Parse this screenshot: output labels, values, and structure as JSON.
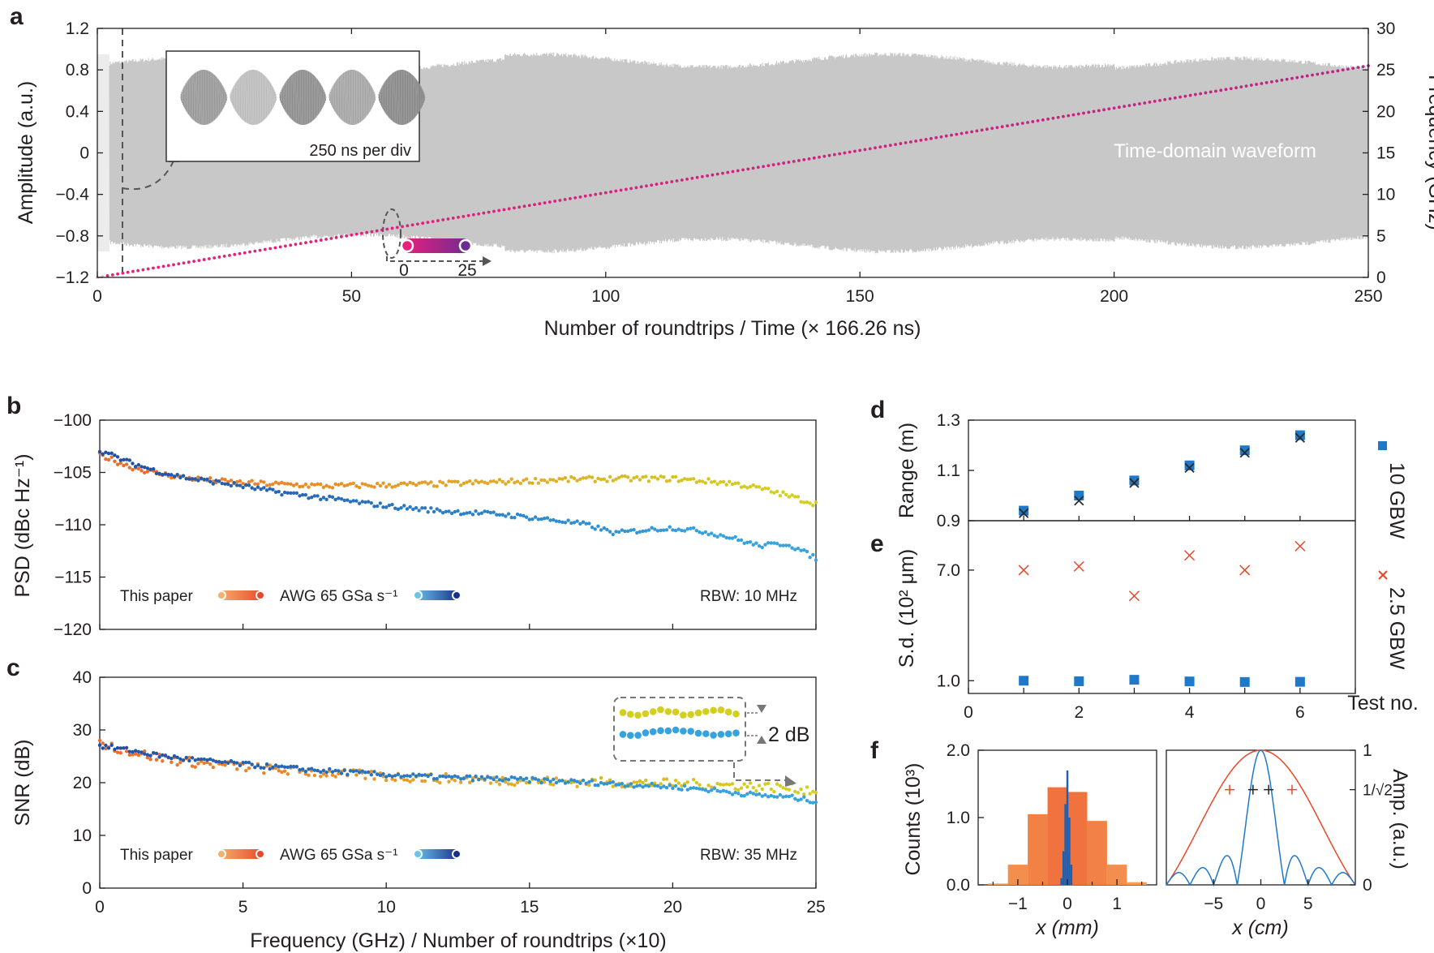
{
  "panels": {
    "a": {
      "label": "a",
      "xlabel": "Number of roundtrips / Time (× 166.26 ns)",
      "ylabel_left": "Amplitude (a.u.)",
      "ylabel_right": "Frequency (GHz)",
      "waveform_label": "Time-domain waveform",
      "inset_caption": "250 ns per div",
      "colorbar_min": "0",
      "colorbar_max": "25"
    },
    "b": {
      "label": "b",
      "ylabel": "PSD (dBc Hz⁻¹)",
      "rbw": "RBW: 10 MHz",
      "legend_1": "This paper",
      "legend_2": "AWG 65 GSa s⁻¹"
    },
    "c": {
      "label": "c",
      "ylabel": "SNR (dB)",
      "xlabel": "Frequency (GHz) / Number of roundtrips (×10)",
      "rbw": "RBW: 35 MHz",
      "legend_1": "This paper",
      "legend_2": "AWG 65 GSa s⁻¹",
      "inset_note": "2 dB"
    },
    "d": {
      "label": "d",
      "ylabel": "Range (m)",
      "legend_1": "10 GBW",
      "legend_2": "2.5 GBW"
    },
    "e": {
      "label": "e",
      "ylabel": "S.d. (10² μm)",
      "xlabel": "Test no."
    },
    "f": {
      "label": "f",
      "ylabel_left": "Counts (10³)",
      "xlabel_left": "x (mm)",
      "xlabel_right": "x (cm)",
      "ylabel_right": "Amp. (a.u.)"
    }
  },
  "colors": {
    "this_paper": "#ef6b2a",
    "this_paper_light": "#e3a228",
    "this_paper_end": "#d4cf1e",
    "awg": "#1f4fa5",
    "awg_light": "#36a3df",
    "frequency_ramp_start": "#e8207d",
    "frequency_ramp_end": "#6d2c91",
    "waveform": "#c8c8c8",
    "cross_red": "#e8472b",
    "square_blue": "#1f78c8",
    "hist_orange": "#f28a5a",
    "hist_blue": "#1f5fb0"
  },
  "chart_data": [
    {
      "panel": "a",
      "type": "line",
      "xlabel": "Number of roundtrips / Time (× 166.26 ns)",
      "xlim": [
        0,
        250
      ],
      "xticks": [
        0,
        50,
        100,
        150,
        200,
        250
      ],
      "ylim": [
        -1.2,
        1.2
      ],
      "yticks": [
        -1.2,
        -0.8,
        -0.4,
        0,
        0.4,
        0.8,
        1.2
      ],
      "y2lim": [
        0,
        30
      ],
      "y2ticks": [
        0,
        5,
        10,
        15,
        20,
        25,
        30
      ],
      "series": [
        {
          "kind": "envelope",
          "amplitude": 0.85
        },
        {
          "kind": "frequency-ramp",
          "x": [
            0,
            250
          ],
          "y": [
            0,
            25.5
          ]
        }
      ]
    },
    {
      "panel": "b",
      "type": "scatter",
      "ylabel": "PSD (dBc Hz⁻¹)",
      "xlim": [
        0,
        25
      ],
      "ylim": [
        -120,
        -100
      ],
      "yticks": [
        -120,
        -115,
        -110,
        -105,
        -100
      ],
      "series": [
        {
          "name": "This paper",
          "x": [
            0,
            1,
            2,
            3,
            4,
            5,
            6,
            8,
            10,
            12,
            14,
            16,
            18,
            20,
            22,
            23,
            24,
            25
          ],
          "y": [
            -103.3,
            -104.4,
            -105.1,
            -105.5,
            -105.8,
            -106.0,
            -106.1,
            -106.3,
            -106.2,
            -106.1,
            -105.9,
            -105.7,
            -105.6,
            -105.6,
            -106.0,
            -106.5,
            -107.2,
            -108.0
          ]
        },
        {
          "name": "AWG 65 GSa s⁻¹",
          "x": [
            0,
            1,
            2,
            3,
            4,
            5,
            6,
            8,
            10,
            12,
            14,
            15,
            16,
            17,
            18,
            19,
            20,
            21,
            22,
            23,
            24,
            25
          ],
          "y": [
            -102.9,
            -104.0,
            -104.9,
            -105.5,
            -105.9,
            -106.3,
            -106.8,
            -107.5,
            -108.2,
            -108.7,
            -109.0,
            -109.3,
            -109.6,
            -110.0,
            -110.8,
            -110.5,
            -110.3,
            -110.6,
            -111.2,
            -112.0,
            -111.8,
            -113.2
          ]
        }
      ]
    },
    {
      "panel": "c",
      "type": "scatter",
      "xlabel": "Frequency (GHz) / Number of roundtrips (×10)",
      "ylabel": "SNR (dB)",
      "xlim": [
        0,
        25
      ],
      "ylim": [
        0,
        40
      ],
      "xticks": [
        0,
        5,
        10,
        15,
        20,
        25
      ],
      "yticks": [
        0,
        10,
        20,
        30,
        40
      ],
      "series": [
        {
          "name": "This paper",
          "x": [
            0,
            1,
            2,
            3,
            4,
            5,
            6,
            8,
            10,
            12,
            14,
            16,
            18,
            20,
            22,
            24,
            25
          ],
          "y": [
            27.5,
            26.0,
            24.8,
            24.0,
            23.5,
            23.0,
            22.5,
            21.8,
            21.2,
            20.8,
            20.5,
            20.2,
            20.0,
            19.8,
            19.5,
            19.0,
            18.5
          ]
        },
        {
          "name": "AWG 65 GSa s⁻¹",
          "x": [
            0,
            1,
            2,
            3,
            4,
            5,
            6,
            8,
            10,
            12,
            14,
            16,
            18,
            20,
            21,
            22,
            23,
            24,
            25
          ],
          "y": [
            27.0,
            26.2,
            25.2,
            24.5,
            24.0,
            23.5,
            23.0,
            22.2,
            21.5,
            21.0,
            20.7,
            20.3,
            19.8,
            19.2,
            18.8,
            18.2,
            17.6,
            17.3,
            16.5
          ]
        }
      ]
    },
    {
      "panel": "d",
      "type": "scatter",
      "ylabel": "Range (m)",
      "xlim": [
        0,
        7
      ],
      "ylim": [
        0.9,
        1.3
      ],
      "yticks": [
        0.9,
        1.1,
        1.3
      ],
      "series": [
        {
          "name": "10 GBW",
          "x": [
            1,
            2,
            3,
            4,
            5,
            6
          ],
          "y": [
            0.94,
            1.0,
            1.06,
            1.12,
            1.18,
            1.24
          ]
        },
        {
          "name": "2.5 GBW",
          "x": [
            1,
            2,
            3,
            4,
            5,
            6
          ],
          "y": [
            0.93,
            0.98,
            1.05,
            1.11,
            1.17,
            1.23
          ]
        }
      ]
    },
    {
      "panel": "e",
      "type": "scatter",
      "xlabel": "Test no.",
      "ylabel": "S.d. (10² μm)",
      "xlim": [
        0,
        7
      ],
      "xticks": [
        0,
        2,
        4,
        6
      ],
      "yticks": [
        1.0,
        7.0
      ],
      "series": [
        {
          "name": "10 GBW",
          "x": [
            1,
            2,
            3,
            4,
            5,
            6
          ],
          "y": [
            1.0,
            0.97,
            1.05,
            0.96,
            0.93,
            0.94
          ]
        },
        {
          "name": "2.5 GBW",
          "x": [
            1,
            2,
            3,
            4,
            5,
            6
          ],
          "y": [
            7.0,
            7.2,
            5.6,
            7.8,
            7.0,
            8.3
          ]
        }
      ]
    },
    {
      "panel": "f-left",
      "type": "bar",
      "xlabel": "x (mm)",
      "ylabel": "Counts (10³)",
      "xlim": [
        -1.8,
        1.8
      ],
      "ylim": [
        0,
        2.0
      ],
      "xticks": [
        -1,
        0,
        1
      ],
      "yticks": [
        0,
        1.0,
        2.0
      ],
      "series": [
        {
          "name": "2.5 GBW",
          "bin_width": 0.4,
          "x": [
            -1.4,
            -1.0,
            -0.6,
            -0.2,
            0.2,
            0.6,
            1.0,
            1.4
          ],
          "values": [
            0.02,
            0.3,
            1.05,
            1.45,
            1.38,
            0.95,
            0.3,
            0.04
          ]
        },
        {
          "name": "10 GBW",
          "bin_width": 0.04,
          "x": [
            -0.12,
            -0.08,
            -0.04,
            0,
            0.04,
            0.08
          ],
          "values": [
            0.1,
            0.5,
            1.2,
            1.7,
            1.0,
            0.3
          ]
        }
      ]
    },
    {
      "panel": "f-right",
      "type": "line",
      "xlabel": "x (cm)",
      "ylabel": "Amp. (a.u.)",
      "xlim": [
        -10,
        10
      ],
      "ylim": [
        0,
        1
      ],
      "xticks": [
        -5,
        0,
        5
      ],
      "y2ticks": [
        "0",
        "1/√2",
        "1"
      ],
      "series": [
        {
          "name": "2.5 GBW",
          "function": "abs(sinc)",
          "scale_cm": 10
        },
        {
          "name": "10 GBW",
          "function": "abs(sinc)",
          "scale_cm": 2.5
        }
      ]
    }
  ]
}
